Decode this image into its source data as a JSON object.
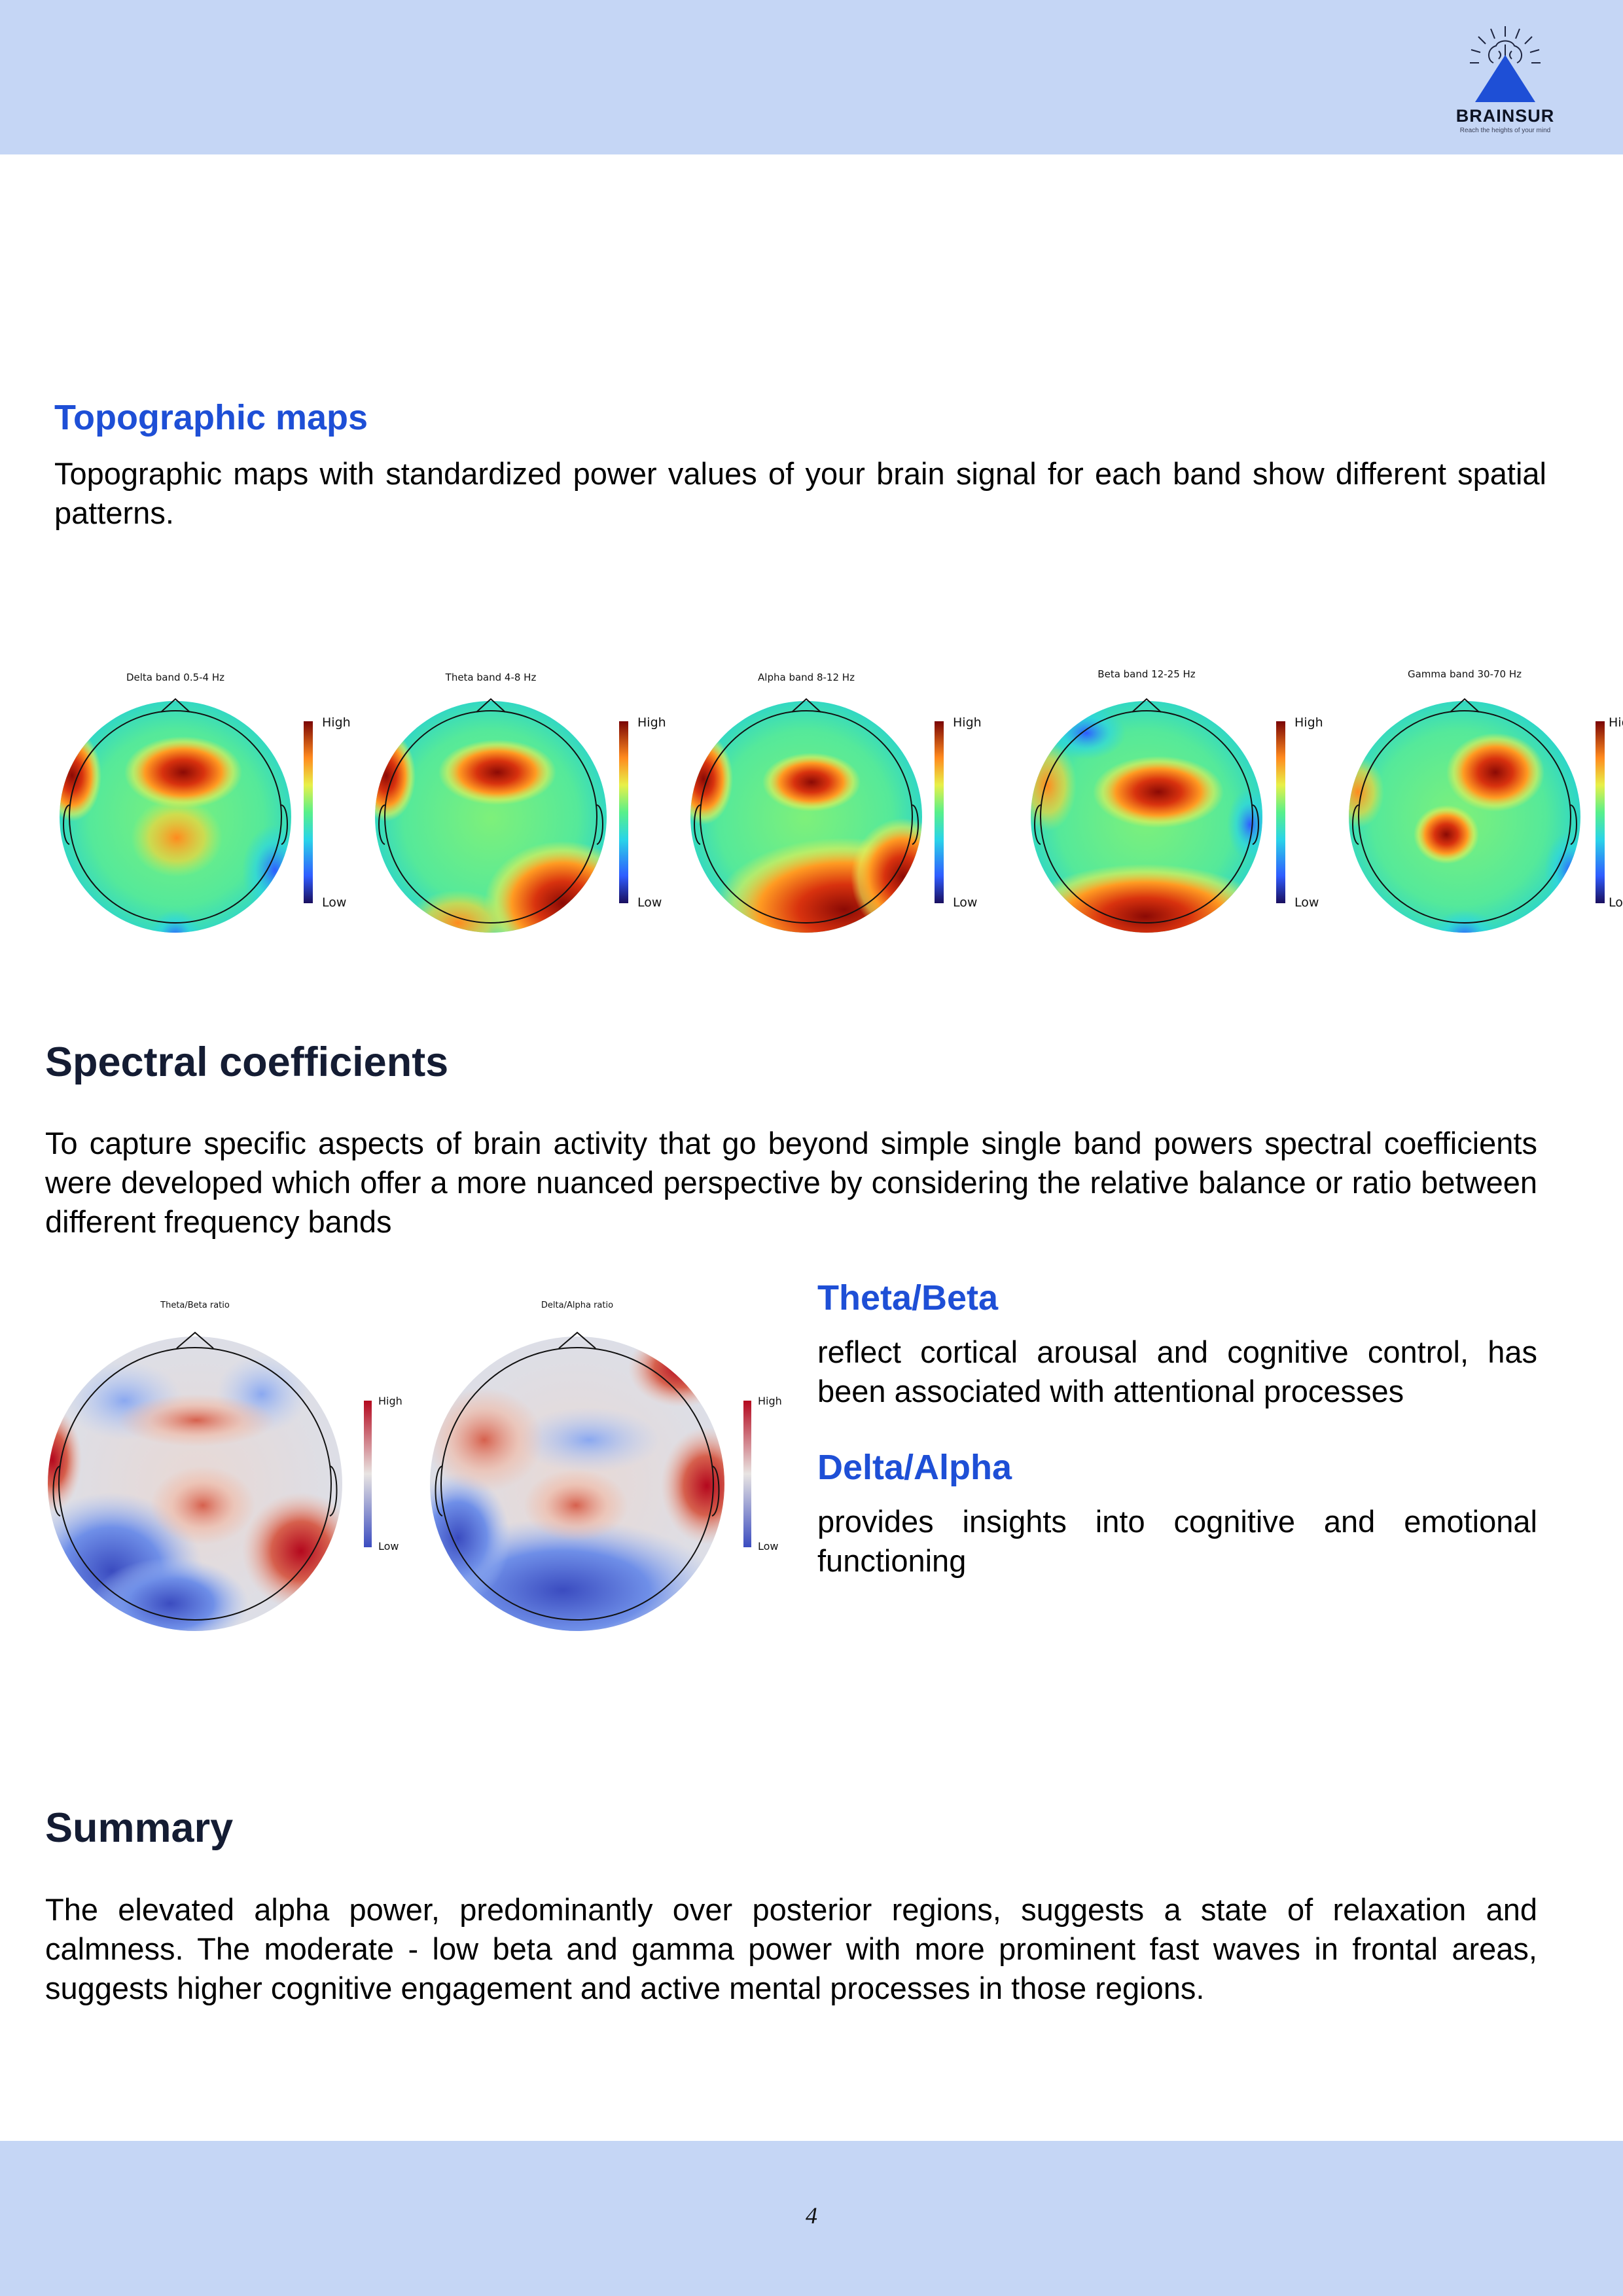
{
  "header": {
    "logo": {
      "name": "BRAINSUR",
      "tagline": "Reach the heights of your mind"
    }
  },
  "topographic": {
    "heading": "Topographic maps",
    "text": "Topographic maps with standardized power values of your brain signal for each band show different spatial patterns.",
    "maps": [
      {
        "title": "Delta band 0.5-4 Hz",
        "high": "High",
        "low": "Low"
      },
      {
        "title": "Theta band 4-8 Hz",
        "high": "High",
        "low": "Low"
      },
      {
        "title": "Alpha band 8-12 Hz",
        "high": "High",
        "low": "Low"
      },
      {
        "title": "Beta band 12-25 Hz",
        "high": "High",
        "low": "Low"
      },
      {
        "title": "Gamma band 30-70 Hz",
        "high": "High",
        "low": "Low"
      }
    ]
  },
  "spectral": {
    "heading": "Spectral coefficients",
    "text": "To capture specific aspects of brain activity that go beyond simple single band powers spectral coefficients were developed which offer a more nuanced perspective by considering the relative balance or ratio between different frequency bands",
    "maps": [
      {
        "title": "Theta/Beta ratio",
        "high": "High",
        "low": "Low"
      },
      {
        "title": "Delta/Alpha ratio",
        "high": "High",
        "low": "Low"
      }
    ],
    "theta_beta": {
      "heading": "Theta/Beta",
      "text": "reflect cortical arousal and cognitive control, has been associated with attentional processes"
    },
    "delta_alpha": {
      "heading": "Delta/Alpha",
      "text": "provides insights into cognitive and emotional functioning"
    }
  },
  "summary": {
    "heading": "Summary",
    "text": "The elevated alpha power, predominantly over posterior regions, suggests a state of relaxation and calmness. The moderate - low beta and gamma power with more prominent fast waves in frontal areas, suggests higher cognitive engagement and active mental processes in those regions."
  },
  "footer": {
    "page_number": "4"
  },
  "colors": {
    "band": "#c5d6f5",
    "accent_blue": "#1e4fd6",
    "dark_heading": "#141c33"
  }
}
